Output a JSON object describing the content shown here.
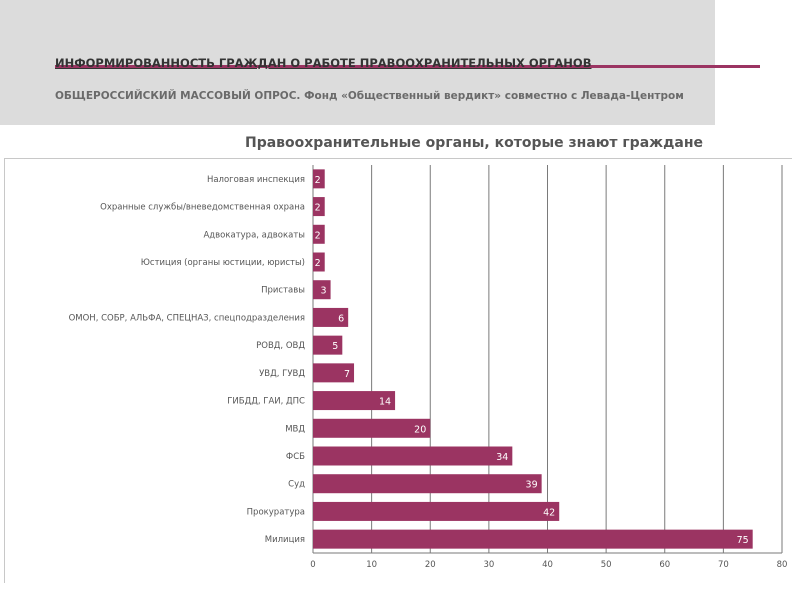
{
  "header": {
    "title": "ИНФОРМИРОВАННОСТЬ ГРАЖДАН О РАБОТЕ ПРАВООХРАНИТЕЛЬНЫХ ОРГАНОВ",
    "subtitle": "ОБЩЕРОССИЙСКИЙ МАССОВЫЙ ОПРОС. Фонд «Общественный вердикт» совместно с Левада-Центром"
  },
  "colors": {
    "accent": "#9b3462",
    "bar": "#9b3462",
    "header_band": "#dcdcdc"
  },
  "chart_data": {
    "type": "bar",
    "orientation": "horizontal",
    "title": "Правоохранительные органы, которые знают граждане",
    "categories": [
      "Налоговая инспекция",
      "Охранные службы/вневедомственная охрана",
      "Адвокатура, адвокаты",
      "Юстиция (органы юстиции, юристы)",
      "Приставы",
      "ОМОН, СОБР, АЛЬФА, СПЕЦНАЗ, спецподразделения",
      "РОВД, ОВД",
      "УВД, ГУВД",
      "ГИБДД, ГАИ, ДПС",
      "МВД",
      "ФСБ",
      "Суд",
      "Прокуратура",
      "Милиция"
    ],
    "values": [
      2,
      2,
      2,
      2,
      3,
      6,
      5,
      7,
      14,
      20,
      34,
      39,
      42,
      75
    ],
    "xlim": [
      0,
      80
    ],
    "xticks": [
      0,
      10,
      20,
      30,
      40,
      50,
      60,
      70,
      80
    ],
    "grid": true,
    "xlabel": "",
    "ylabel": ""
  }
}
